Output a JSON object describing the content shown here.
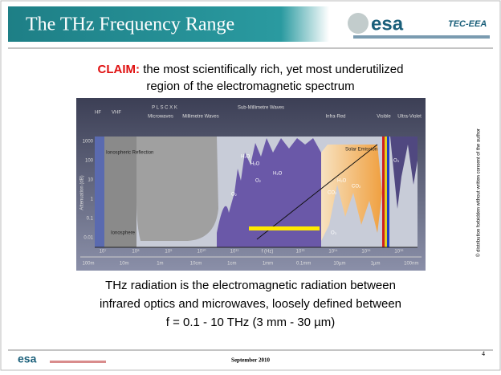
{
  "header": {
    "title": "The THz Frequency Range",
    "logo": "esa",
    "department": "TEC-EEA"
  },
  "claim": {
    "label": "CLAIM:",
    "text_line1": "the most scientifically rich, yet most underutilized",
    "text_line2": "region of the electromagnetic spectrum"
  },
  "figure": {
    "bands": [
      "HF",
      "VHF",
      "P  L  S C X  K",
      "Microwaves",
      "Millimetre Waves",
      "Sub-Millimetre Waves",
      "Infra-Red",
      "Visible",
      "Ultra-Violet"
    ],
    "regions": [
      "Ionospheric Reflection",
      "Ionosphere",
      "Solar Emission"
    ],
    "molecules": [
      "H₂O",
      "O₂",
      "H₂O",
      "O₂",
      "H₂O",
      "CO₂",
      "H₂O",
      "CO₂",
      "O₃",
      "O₃"
    ],
    "y_axis_label": "Attenuation (dB)",
    "y_ticks": [
      "1000",
      "100",
      "10",
      "1",
      "0.1",
      "0.01"
    ],
    "frequency_ticks": [
      "10⁷",
      "10⁸",
      "10⁹",
      "10¹⁰",
      "10¹¹",
      "f (Hz)",
      "10¹³",
      "10¹⁴",
      "10¹⁵",
      "10¹⁶"
    ],
    "wavelength_ticks": [
      "100m",
      "10m",
      "1m",
      "10cm",
      "1cm",
      "1mm",
      "0.1mm",
      "10µm",
      "1µm",
      "100nm"
    ]
  },
  "description": {
    "line1": "THz radiation is the electromagnetic radiation between",
    "line2": "infrared optics and microwaves, loosely defined between",
    "line3": "f = 0.1 - 10 THz (3 mm - 30 µm)"
  },
  "side_note": "© distribution forbidden without written consent of the author",
  "footer": {
    "logo": "esa",
    "date": "September 2010",
    "page": "4"
  }
}
